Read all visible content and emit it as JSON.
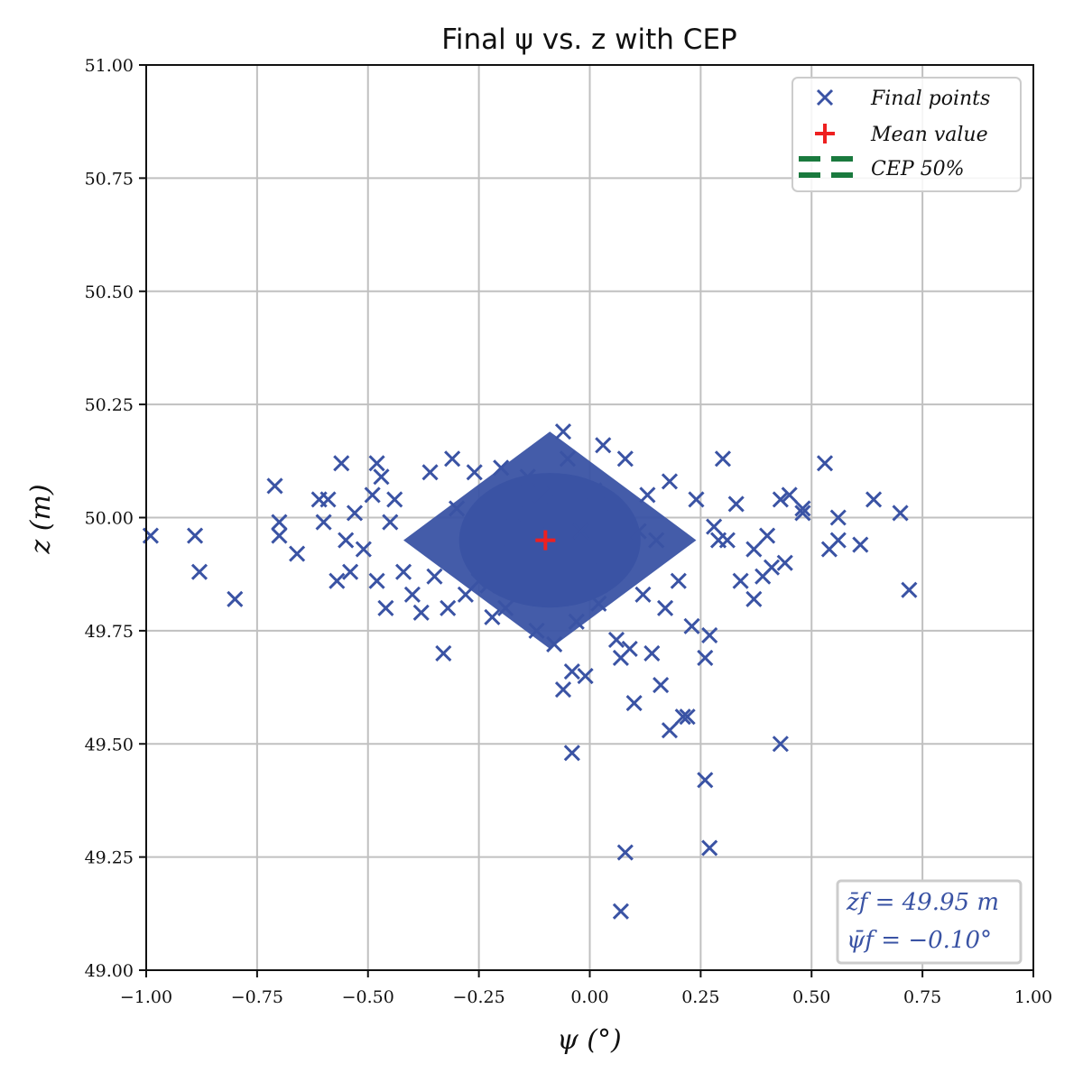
{
  "chart_data": {
    "type": "scatter",
    "title": "Final ψ vs. z with CEP",
    "xlabel": "ψ (°)",
    "ylabel": "z (m)",
    "xlim": [
      -1.0,
      1.0
    ],
    "ylim": [
      49.0,
      51.0
    ],
    "x_ticks": [
      "−1.00",
      "−0.75",
      "−0.50",
      "−0.25",
      "0.00",
      "0.25",
      "0.50",
      "0.75",
      "1.00"
    ],
    "y_ticks": [
      "49.00",
      "49.25",
      "49.50",
      "49.75",
      "50.00",
      "50.25",
      "50.50",
      "50.75",
      "51.00"
    ],
    "grid": true,
    "legend_position": "top-right",
    "series": [
      {
        "name": "Final points",
        "marker": "x",
        "color": "#3a53a4",
        "points": [
          [
            -0.99,
            49.96
          ],
          [
            -0.89,
            49.96
          ],
          [
            -0.88,
            49.88
          ],
          [
            -0.8,
            49.82
          ],
          [
            -0.71,
            50.07
          ],
          [
            -0.7,
            49.99
          ],
          [
            -0.7,
            49.96
          ],
          [
            -0.66,
            49.92
          ],
          [
            -0.61,
            50.04
          ],
          [
            -0.6,
            49.99
          ],
          [
            -0.59,
            50.04
          ],
          [
            -0.57,
            49.86
          ],
          [
            -0.56,
            50.12
          ],
          [
            -0.55,
            49.95
          ],
          [
            -0.54,
            49.88
          ],
          [
            -0.53,
            50.01
          ],
          [
            -0.51,
            49.93
          ],
          [
            -0.49,
            50.05
          ],
          [
            -0.48,
            50.12
          ],
          [
            -0.48,
            49.86
          ],
          [
            -0.47,
            50.09
          ],
          [
            -0.46,
            49.8
          ],
          [
            -0.45,
            49.99
          ],
          [
            -0.44,
            50.04
          ],
          [
            -0.42,
            49.88
          ],
          [
            -0.4,
            49.83
          ],
          [
            -0.38,
            49.79
          ],
          [
            -0.36,
            50.1
          ],
          [
            -0.35,
            49.87
          ],
          [
            -0.33,
            49.7
          ],
          [
            -0.32,
            49.8
          ],
          [
            -0.31,
            50.13
          ],
          [
            -0.3,
            50.02
          ],
          [
            -0.28,
            49.83
          ],
          [
            -0.26,
            50.1
          ],
          [
            -0.25,
            49.86
          ],
          [
            -0.23,
            49.85
          ],
          [
            -0.22,
            49.78
          ],
          [
            -0.2,
            50.11
          ],
          [
            -0.19,
            49.8
          ],
          [
            -0.18,
            49.92
          ],
          [
            -0.17,
            50.01
          ],
          [
            -0.15,
            49.88
          ],
          [
            -0.14,
            50.09
          ],
          [
            -0.13,
            49.83
          ],
          [
            -0.12,
            49.75
          ],
          [
            -0.11,
            50.05
          ],
          [
            -0.1,
            49.9
          ],
          [
            -0.09,
            49.96
          ],
          [
            -0.08,
            49.72
          ],
          [
            -0.07,
            50.03
          ],
          [
            -0.06,
            50.19
          ],
          [
            -0.05,
            50.13
          ],
          [
            -0.06,
            49.62
          ],
          [
            -0.04,
            49.48
          ],
          [
            -0.04,
            49.66
          ],
          [
            -0.03,
            49.77
          ],
          [
            -0.02,
            49.97
          ],
          [
            -0.01,
            49.65
          ],
          [
            0.0,
            49.88
          ],
          [
            0.01,
            50.06
          ],
          [
            0.02,
            49.81
          ],
          [
            0.03,
            50.16
          ],
          [
            0.04,
            49.9
          ],
          [
            0.05,
            50.03
          ],
          [
            0.06,
            49.73
          ],
          [
            0.07,
            49.69
          ],
          [
            0.07,
            49.13
          ],
          [
            0.08,
            50.13
          ],
          [
            0.08,
            49.26
          ],
          [
            0.09,
            49.71
          ],
          [
            0.1,
            49.59
          ],
          [
            0.11,
            49.97
          ],
          [
            0.12,
            49.83
          ],
          [
            0.13,
            50.05
          ],
          [
            0.14,
            49.7
          ],
          [
            0.15,
            49.95
          ],
          [
            0.16,
            49.63
          ],
          [
            0.17,
            49.8
          ],
          [
            0.18,
            49.53
          ],
          [
            0.18,
            50.08
          ],
          [
            0.2,
            49.86
          ],
          [
            0.21,
            49.56
          ],
          [
            0.22,
            49.56
          ],
          [
            0.23,
            49.76
          ],
          [
            0.24,
            50.04
          ],
          [
            0.26,
            49.69
          ],
          [
            0.26,
            49.42
          ],
          [
            0.27,
            49.27
          ],
          [
            0.27,
            49.74
          ],
          [
            0.28,
            49.98
          ],
          [
            0.29,
            49.95
          ],
          [
            0.3,
            50.13
          ],
          [
            0.31,
            49.95
          ],
          [
            0.33,
            50.03
          ],
          [
            0.34,
            49.86
          ],
          [
            0.37,
            49.93
          ],
          [
            0.37,
            49.82
          ],
          [
            0.39,
            49.87
          ],
          [
            0.4,
            49.96
          ],
          [
            0.41,
            49.89
          ],
          [
            0.43,
            50.04
          ],
          [
            0.43,
            49.5
          ],
          [
            0.44,
            49.9
          ],
          [
            0.45,
            50.05
          ],
          [
            0.48,
            50.02
          ],
          [
            0.48,
            50.01
          ],
          [
            0.53,
            50.12
          ],
          [
            0.54,
            49.93
          ],
          [
            0.56,
            50.0
          ],
          [
            0.56,
            49.95
          ],
          [
            0.61,
            49.94
          ],
          [
            0.64,
            50.04
          ],
          [
            0.7,
            50.01
          ],
          [
            0.72,
            49.84
          ]
        ]
      },
      {
        "name": "Mean value",
        "marker": "+",
        "color": "#ee2020",
        "points": [
          [
            -0.1,
            49.95
          ]
        ]
      },
      {
        "name": "CEP 50%",
        "marker": "dashed-line",
        "color": "#1a7a3e",
        "points": []
      }
    ],
    "dense_cluster": {
      "description_color": "#3a53a4",
      "center": [
        -0.09,
        49.95
      ],
      "x_half_width": 0.33,
      "y_half_height": 0.24
    }
  },
  "legend": {
    "items": [
      {
        "label": "Final points",
        "color": "#3a53a4"
      },
      {
        "label": "Mean value",
        "color": "#ee2020"
      },
      {
        "label": "CEP 50%",
        "color": "#1a7a3e"
      }
    ]
  },
  "stats": {
    "z_line": "z̄f = 49.95 m",
    "psi_line": "ψ̄f = −0.10°",
    "color": "#3a53a4"
  }
}
